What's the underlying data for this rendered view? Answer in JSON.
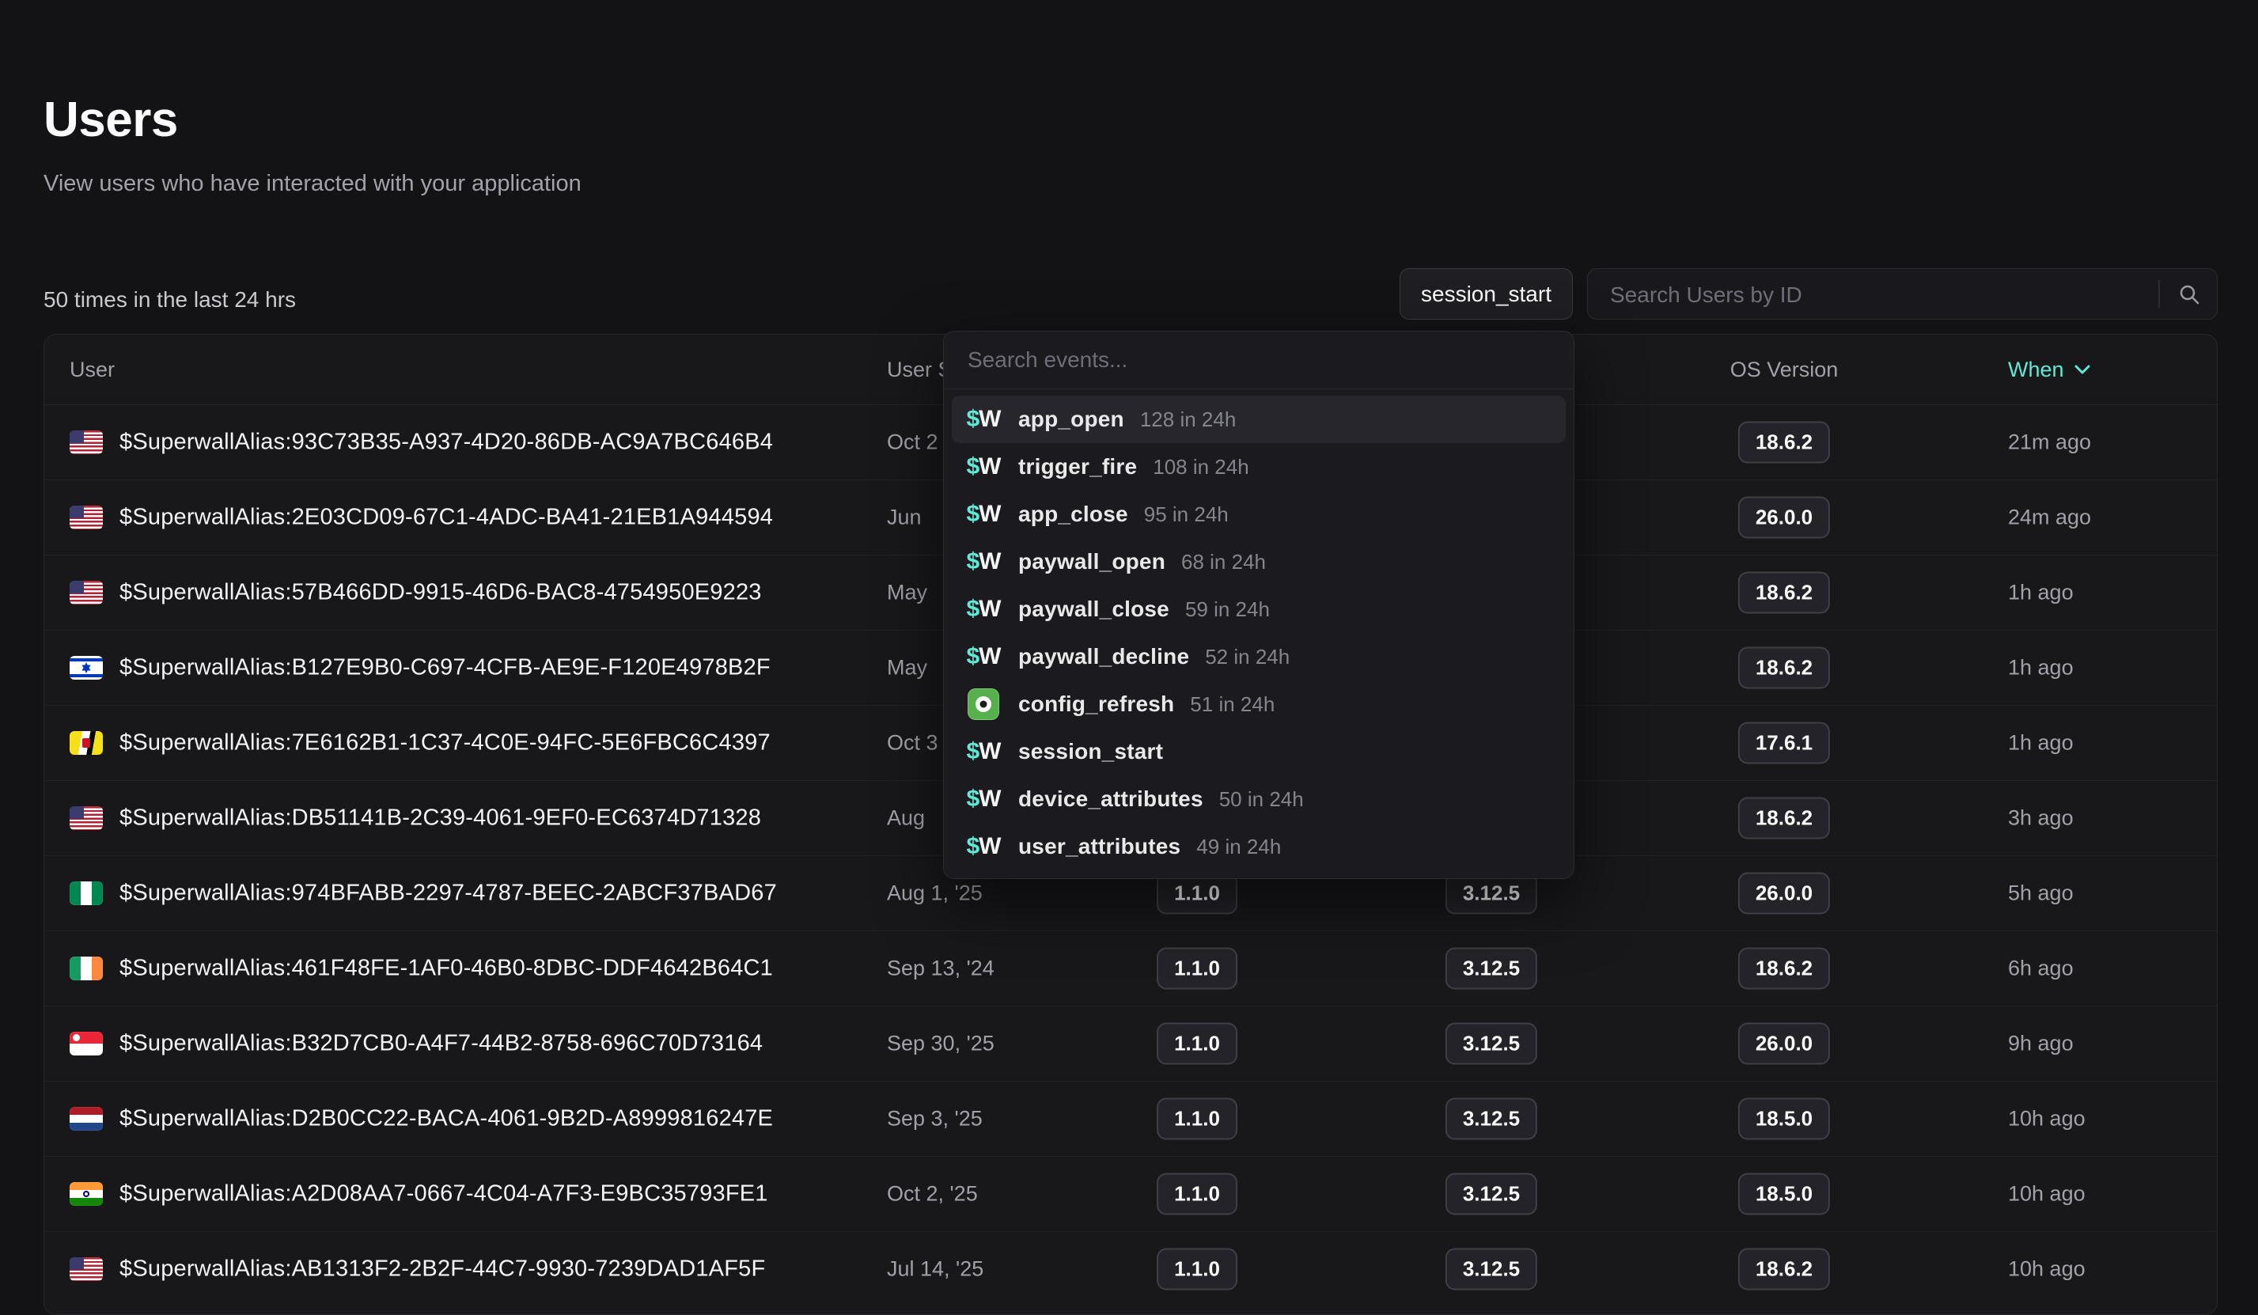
{
  "page": {
    "title": "Users",
    "subtitle": "View users who have interacted with your application",
    "summary": "50 times in the last 24 hrs"
  },
  "toolbar": {
    "event_filter_label": "session_start",
    "search_placeholder": "Search Users by ID",
    "search_icon": "magnifier-icon"
  },
  "event_dropdown": {
    "search_placeholder": "Search events...",
    "items": [
      {
        "name": "app_open",
        "count": "128 in 24h",
        "icon": "superwall-sw-icon",
        "highlighted": true
      },
      {
        "name": "trigger_fire",
        "count": "108 in 24h",
        "icon": "superwall-sw-icon",
        "highlighted": false
      },
      {
        "name": "app_close",
        "count": "95 in 24h",
        "icon": "superwall-sw-icon",
        "highlighted": false
      },
      {
        "name": "paywall_open",
        "count": "68 in 24h",
        "icon": "superwall-sw-icon",
        "highlighted": false
      },
      {
        "name": "paywall_close",
        "count": "59 in 24h",
        "icon": "superwall-sw-icon",
        "highlighted": false
      },
      {
        "name": "paywall_decline",
        "count": "52 in 24h",
        "icon": "superwall-sw-icon",
        "highlighted": false
      },
      {
        "name": "config_refresh",
        "count": "51 in 24h",
        "icon": "green-app-icon",
        "highlighted": false
      },
      {
        "name": "session_start",
        "count": "",
        "icon": "superwall-sw-icon",
        "highlighted": false
      },
      {
        "name": "device_attributes",
        "count": "50 in 24h",
        "icon": "superwall-sw-icon",
        "highlighted": false
      },
      {
        "name": "user_attributes",
        "count": "49 in 24h",
        "icon": "superwall-sw-icon",
        "highlighted": false
      }
    ]
  },
  "table": {
    "headers": {
      "user": "User",
      "user_since": "User Since",
      "app_version": "",
      "sdk_version": "",
      "os_version": "OS Version",
      "when": "When"
    },
    "sort_icon": "chevron-down-icon",
    "rows": [
      {
        "country": "us",
        "alias": "$SuperwallAlias:93C73B35-A937-4D20-86DB-AC9A7BC646B4",
        "user_since": "Oct 2",
        "app_version": null,
        "sdk_version": null,
        "os_version": "18.6.2",
        "when": "21m ago"
      },
      {
        "country": "us",
        "alias": "$SuperwallAlias:2E03CD09-67C1-4ADC-BA41-21EB1A944594",
        "user_since": "Jun",
        "app_version": null,
        "sdk_version": null,
        "os_version": "26.0.0",
        "when": "24m ago"
      },
      {
        "country": "us",
        "alias": "$SuperwallAlias:57B466DD-9915-46D6-BAC8-4754950E9223",
        "user_since": "May",
        "app_version": null,
        "sdk_version": null,
        "os_version": "18.6.2",
        "when": "1h ago"
      },
      {
        "country": "il",
        "alias": "$SuperwallAlias:B127E9B0-C697-4CFB-AE9E-F120E4978B2F",
        "user_since": "May",
        "app_version": null,
        "sdk_version": null,
        "os_version": "18.6.2",
        "when": "1h ago"
      },
      {
        "country": "bn",
        "alias": "$SuperwallAlias:7E6162B1-1C37-4C0E-94FC-5E6FBC6C4397",
        "user_since": "Oct 3",
        "app_version": null,
        "sdk_version": null,
        "os_version": "17.6.1",
        "when": "1h ago"
      },
      {
        "country": "us",
        "alias": "$SuperwallAlias:DB51141B-2C39-4061-9EF0-EC6374D71328",
        "user_since": "Aug",
        "app_version": null,
        "sdk_version": null,
        "os_version": "18.6.2",
        "when": "3h ago"
      },
      {
        "country": "ng",
        "alias": "$SuperwallAlias:974BFABB-2297-4787-BEEC-2ABCF37BAD67",
        "user_since": "Aug 1, '25",
        "app_version": "1.1.0",
        "sdk_version": "3.12.5",
        "os_version": "26.0.0",
        "when": "5h ago"
      },
      {
        "country": "ie",
        "alias": "$SuperwallAlias:461F48FE-1AF0-46B0-8DBC-DDF4642B64C1",
        "user_since": "Sep 13, '24",
        "app_version": "1.1.0",
        "sdk_version": "3.12.5",
        "os_version": "18.6.2",
        "when": "6h ago"
      },
      {
        "country": "sg",
        "alias": "$SuperwallAlias:B32D7CB0-A4F7-44B2-8758-696C70D73164",
        "user_since": "Sep 30, '25",
        "app_version": "1.1.0",
        "sdk_version": "3.12.5",
        "os_version": "26.0.0",
        "when": "9h ago"
      },
      {
        "country": "nl",
        "alias": "$SuperwallAlias:D2B0CC22-BACA-4061-9B2D-A8999816247E",
        "user_since": "Sep 3, '25",
        "app_version": "1.1.0",
        "sdk_version": "3.12.5",
        "os_version": "18.5.0",
        "when": "10h ago"
      },
      {
        "country": "in",
        "alias": "$SuperwallAlias:A2D08AA7-0667-4C04-A7F3-E9BC35793FE1",
        "user_since": "Oct 2, '25",
        "app_version": "1.1.0",
        "sdk_version": "3.12.5",
        "os_version": "18.5.0",
        "when": "10h ago"
      },
      {
        "country": "us",
        "alias": "$SuperwallAlias:AB1313F2-2B2F-44C7-9930-7239DAD1AF5F",
        "user_since": "Jul 14, '25",
        "app_version": "1.1.0",
        "sdk_version": "3.12.5",
        "os_version": "18.6.2",
        "when": "10h ago"
      }
    ]
  },
  "colors": {
    "accent_teal": "#5EEAD4",
    "page_bg": "#131316",
    "panel_bg": "#18181B",
    "config_icon_green": "#56B14C"
  }
}
